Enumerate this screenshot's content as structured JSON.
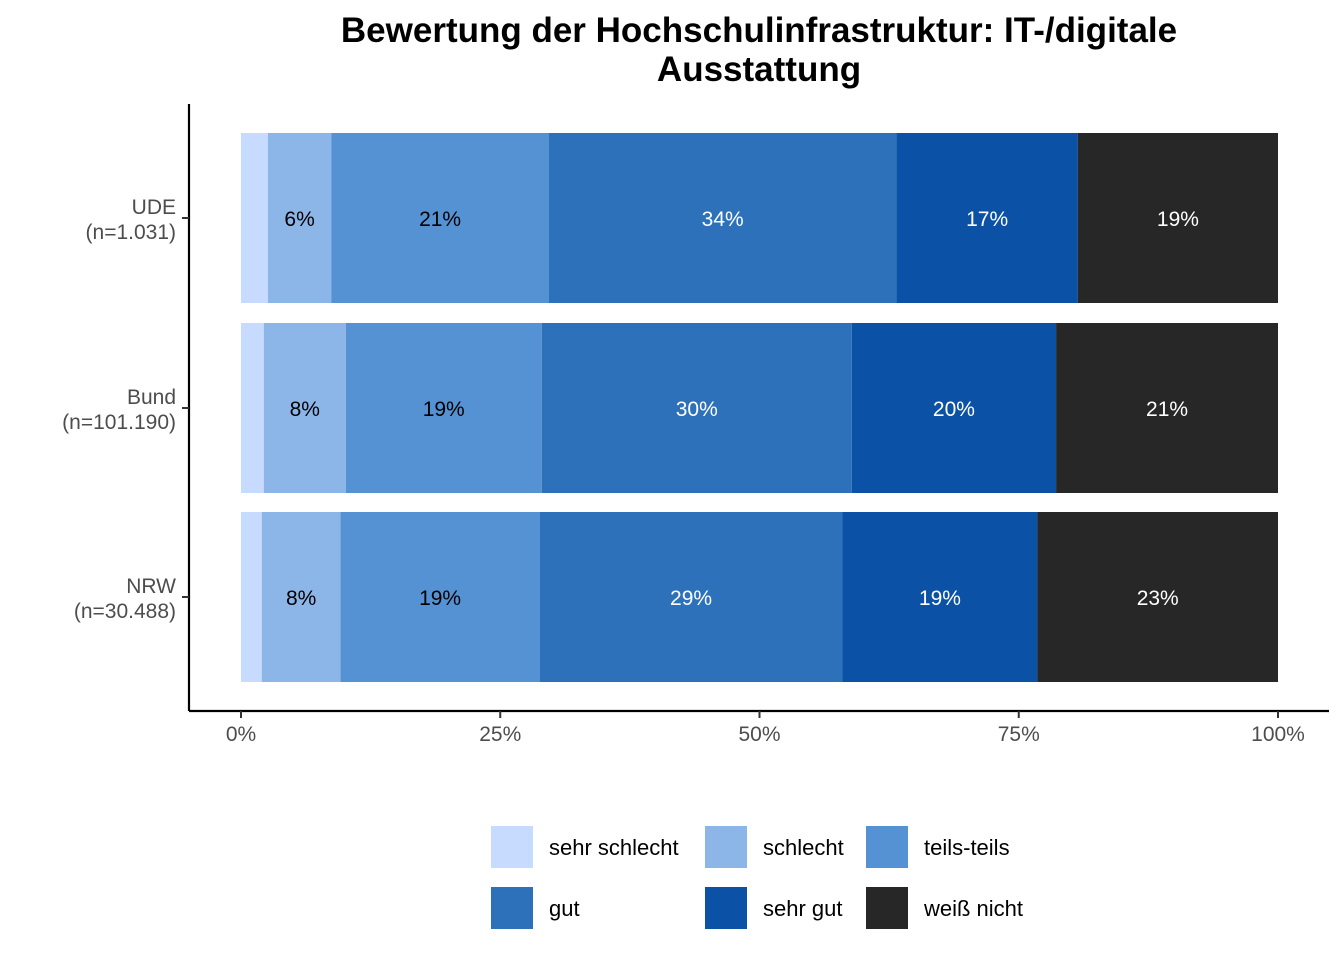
{
  "chart_data": {
    "type": "bar",
    "orientation": "horizontal",
    "stacked": true,
    "title_lines": [
      "Bewertung der Hochschulinfrastruktur: IT-/digitale",
      "Ausstattung"
    ],
    "xlabel": "",
    "ylabel": "",
    "xlim": [
      0,
      1
    ],
    "x_ticks": [
      {
        "value": 0,
        "label": "0%"
      },
      {
        "value": 0.25,
        "label": "25%"
      },
      {
        "value": 0.5,
        "label": "50%"
      },
      {
        "value": 0.75,
        "label": "75%"
      },
      {
        "value": 1,
        "label": "100%"
      }
    ],
    "categories": [
      {
        "line1": "UDE",
        "line2": "(n=1.031)"
      },
      {
        "line1": "Bund",
        "line2": "(n=101.190)"
      },
      {
        "line1": "NRW",
        "line2": "(n=30.488)"
      }
    ],
    "series": [
      {
        "name": "sehr schlecht",
        "color": "#c6dbff",
        "label_color": "#000000",
        "values": [
          0.026,
          0.022,
          0.02
        ],
        "labels": [
          "",
          "",
          ""
        ]
      },
      {
        "name": "schlecht",
        "color": "#8cb5e8",
        "label_color": "#000000",
        "values": [
          0.061,
          0.079,
          0.076
        ],
        "labels": [
          "6%",
          "8%",
          "8%"
        ]
      },
      {
        "name": "teils-teils",
        "color": "#5592d3",
        "label_color": "#000000",
        "values": [
          0.21,
          0.189,
          0.192
        ],
        "labels": [
          "21%",
          "19%",
          "19%"
        ]
      },
      {
        "name": "gut",
        "color": "#2c71ba",
        "label_color": "#ffffff",
        "values": [
          0.335,
          0.299,
          0.292
        ],
        "labels": [
          "34%",
          "30%",
          "29%"
        ]
      },
      {
        "name": "sehr gut",
        "color": "#0b51a6",
        "label_color": "#ffffff",
        "values": [
          0.175,
          0.197,
          0.188
        ],
        "labels": [
          "17%",
          "20%",
          "19%"
        ]
      },
      {
        "name": "weiß nicht",
        "color": "#272727",
        "label_color": "#ffffff",
        "values": [
          0.193,
          0.214,
          0.232
        ],
        "labels": [
          "19%",
          "21%",
          "23%"
        ]
      }
    ],
    "legend": {
      "position": "bottom",
      "columns": 3
    },
    "grid": false
  }
}
